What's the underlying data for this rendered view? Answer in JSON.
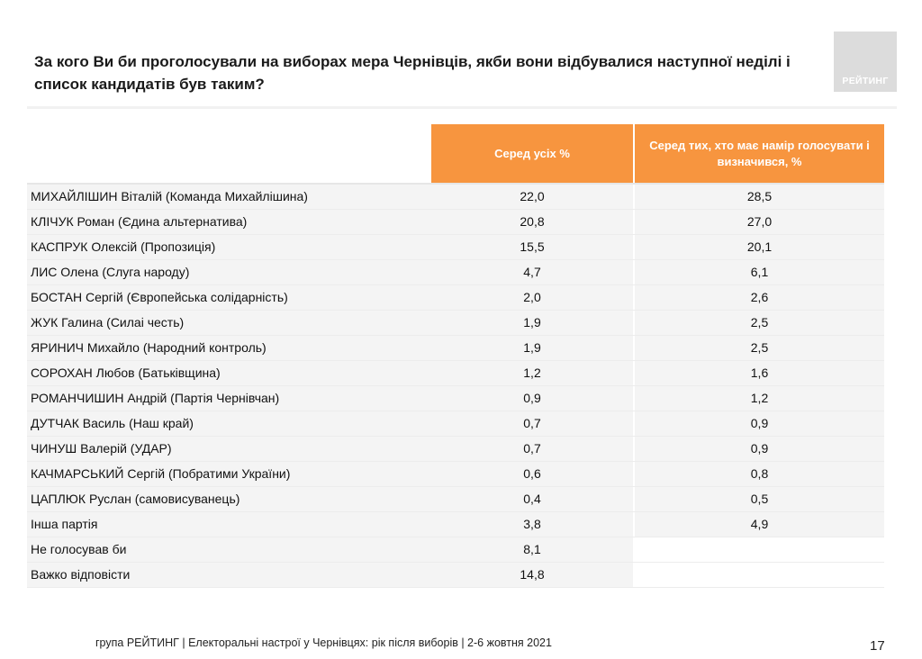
{
  "title": "За кого Ви би проголосували на виборах мера Чернівців, якби вони відбувалися наступної неділі і список кандидатів був таким?",
  "logo_text": "РЕЙТИНГ",
  "columns": {
    "all": "Серед усіх %",
    "decided": "Серед тих, хто має намір голосувати і визначився, %"
  },
  "rows": [
    {
      "name": "МИХАЙЛІШИН Віталій (Команда Михайлішина)",
      "all": "22,0",
      "decided": "28,5"
    },
    {
      "name": "КЛІЧУК Роман (Єдина альтернатива)",
      "all": "20,8",
      "decided": "27,0"
    },
    {
      "name": "КАСПРУК Олексій (Пропозиція)",
      "all": "15,5",
      "decided": "20,1"
    },
    {
      "name": "ЛИС Олена (Слуга народу)",
      "all": "4,7",
      "decided": "6,1"
    },
    {
      "name": "БОСТАН Сергій (Європейська солідарність)",
      "all": "2,0",
      "decided": "2,6"
    },
    {
      "name": "ЖУК Галина (Силаі честь)",
      "all": "1,9",
      "decided": "2,5"
    },
    {
      "name": "ЯРИНИЧ Михайло (Народний контроль)",
      "all": "1,9",
      "decided": "2,5"
    },
    {
      "name": "СОРОХАН Любов (Батьківщина)",
      "all": "1,2",
      "decided": "1,6"
    },
    {
      "name": "РОМАНЧИШИН Андрій (Партія Чернівчан)",
      "all": "0,9",
      "decided": "1,2"
    },
    {
      "name": "ДУТЧАК Василь (Наш край)",
      "all": "0,7",
      "decided": "0,9"
    },
    {
      "name": "ЧИНУШ Валерій (УДАР)",
      "all": "0,7",
      "decided": "0,9"
    },
    {
      "name": "КАЧМАРСЬКИЙ Сергій (Побратими України)",
      "all": "0,6",
      "decided": "0,8"
    },
    {
      "name": "ЦАПЛЮК Руслан (самовисуванець)",
      "all": "0,4",
      "decided": "0,5"
    },
    {
      "name": "Інша партія",
      "all": "3,8",
      "decided": "4,9"
    },
    {
      "name": "Не голосував би",
      "all": "8,1",
      "decided": ""
    },
    {
      "name": "Важко відповісти",
      "all": "14,8",
      "decided": ""
    }
  ],
  "footer": "група РЕЙТИНГ  | Електоральні настрої у Чернівцях: рік після виборів | 2-6 жовтня 2021",
  "page_number": "17"
}
